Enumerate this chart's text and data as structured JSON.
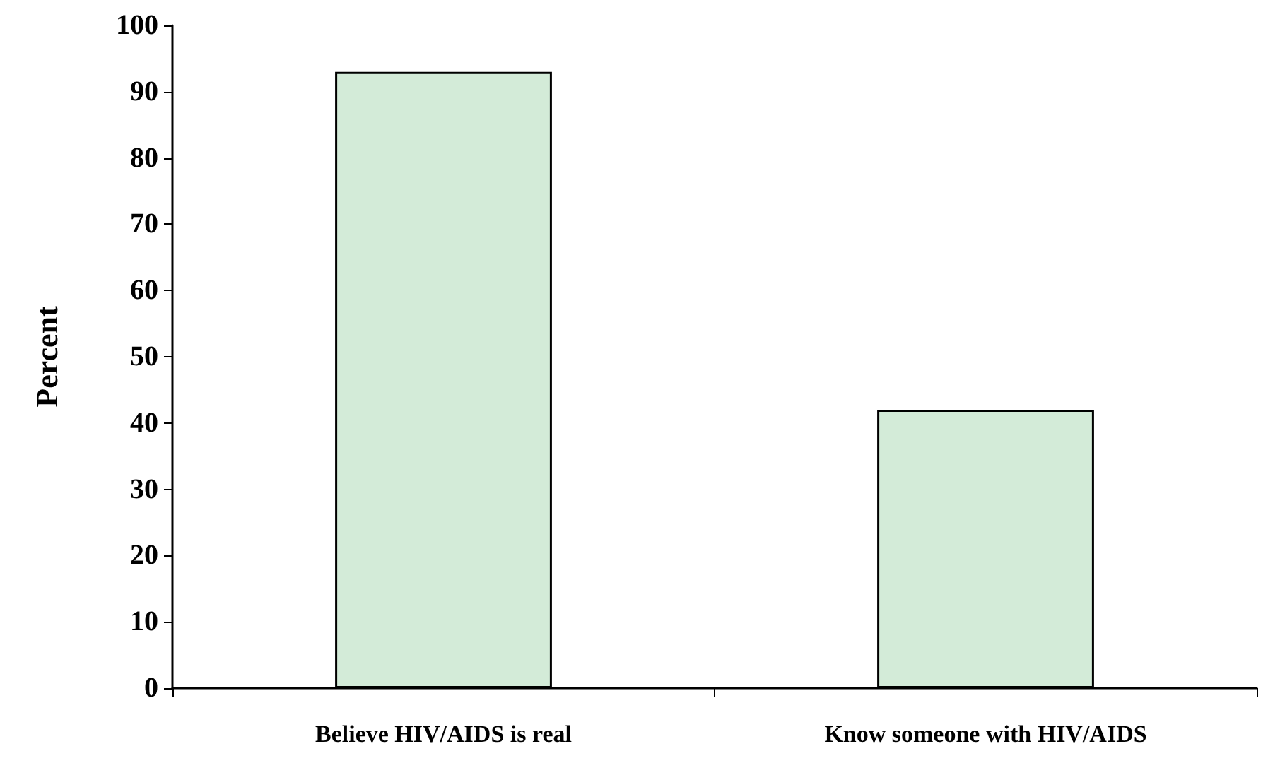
{
  "chart_data": {
    "type": "bar",
    "ylabel": "Percent",
    "categories": [
      "Believe HIV/AIDS is real",
      "Know someone with HIV/AIDS"
    ],
    "values": [
      93,
      42
    ],
    "color": "#d3ebd8",
    "ylim": [
      0,
      100
    ],
    "yticks": [
      0,
      10,
      20,
      30,
      40,
      50,
      60,
      70,
      80,
      90,
      100
    ],
    "grid": false
  }
}
